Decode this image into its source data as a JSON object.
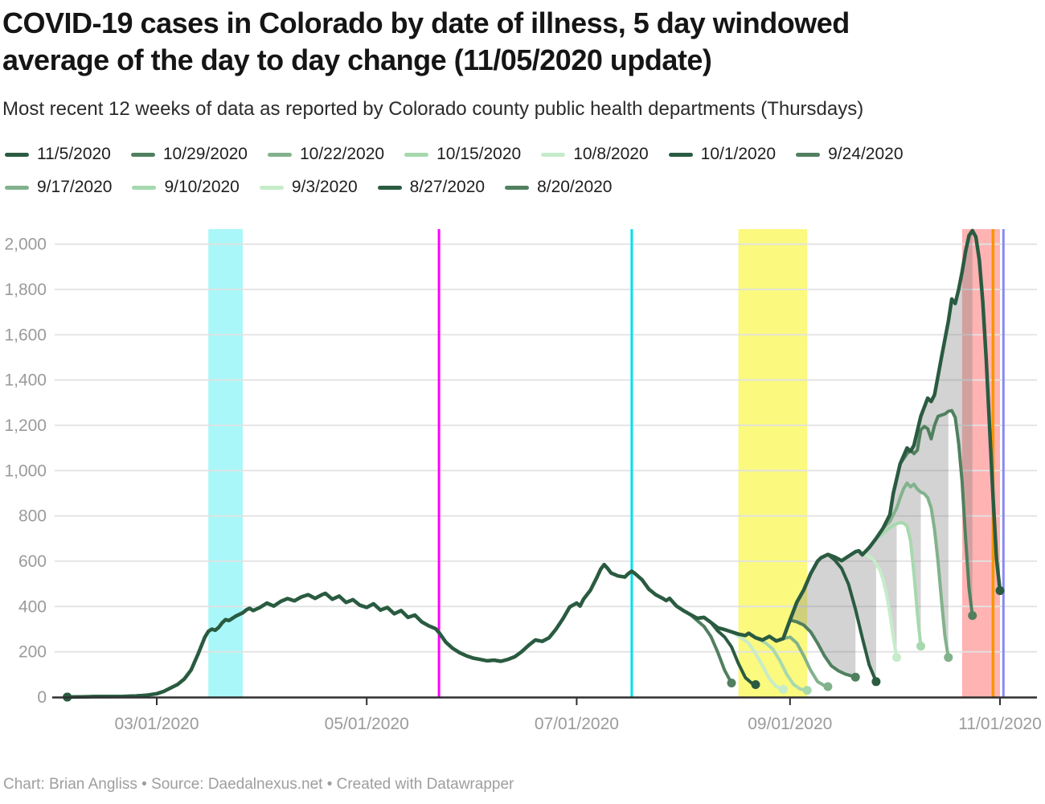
{
  "header": {
    "title_lines": [
      "COVID-19 cases in Colorado by date of illness, 5 day windowed",
      "average of the day to day change (11/05/2020 update)"
    ],
    "subtitle": "Most recent 12 weeks of data as reported by Colorado county public health departments (Thursdays)"
  },
  "legend": {
    "rows": [
      7,
      5
    ]
  },
  "footer": {
    "text": "Chart: Brian Angliss • Source: Daedalnexus.net • Created with Datawrapper"
  },
  "chart_data": {
    "type": "line",
    "title": "COVID-19 cases in Colorado by date of illness, 5 day windowed average of the day to day change (11/05/2020 update)",
    "xlabel": "",
    "ylabel": "",
    "ylim": [
      0,
      2060
    ],
    "grid": true,
    "legend_position": "top",
    "y_ticks": [
      {
        "v": 0,
        "label": "0"
      },
      {
        "v": 200,
        "label": "200"
      },
      {
        "v": 400,
        "label": "400"
      },
      {
        "v": 600,
        "label": "600"
      },
      {
        "v": 800,
        "label": "800"
      },
      {
        "v": 1000,
        "label": "1,000"
      },
      {
        "v": 1200,
        "label": "1,200"
      },
      {
        "v": 1400,
        "label": "1,400"
      },
      {
        "v": 1600,
        "label": "1,600"
      },
      {
        "v": 1800,
        "label": "1,800"
      },
      {
        "v": 2000,
        "label": "2,000"
      }
    ],
    "x_ticks": [
      {
        "date": "03/01",
        "label": "03/01/2020"
      },
      {
        "date": "05/01",
        "label": "05/01/2020"
      },
      {
        "date": "07/01",
        "label": "07/01/2020"
      },
      {
        "date": "09/01",
        "label": "09/01/2020"
      },
      {
        "date": "11/01",
        "label": "11/01/2020"
      }
    ],
    "highlight_bands": [
      {
        "name": "march-stay-home-band",
        "from": "03/16",
        "to": "03/26",
        "color": "#a9f7f9"
      },
      {
        "name": "august-september-band",
        "from": "08/17",
        "to": "09/06",
        "color": "#fbf97e"
      },
      {
        "name": "late-october-band",
        "from": "10/21",
        "to": "11/01",
        "color": "#ffb3b3"
      }
    ],
    "event_lines": [
      {
        "name": "may-line",
        "date": "05/22",
        "color": "#ff00ff",
        "width": 3
      },
      {
        "name": "july-mask-line",
        "date": "07/17",
        "color": "#00e0e8",
        "width": 3
      },
      {
        "name": "halloween-line",
        "date": "10/30",
        "color": "#f79502",
        "width": 3.5
      },
      {
        "name": "november-line",
        "date": "11/02",
        "color": "#8a8af2",
        "width": 3
      }
    ],
    "fan_fill_color": "rgba(120,120,120,0.33)",
    "fans": [
      [
        "9/24/2020",
        "10/1/2020"
      ],
      [
        "10/1/2020",
        "10/8/2020"
      ],
      [
        "10/8/2020",
        "10/15/2020"
      ],
      [
        "10/15/2020",
        "10/22/2020"
      ],
      [
        "10/22/2020",
        "10/29/2020"
      ],
      [
        "10/29/2020",
        "11/5/2020"
      ]
    ],
    "backbone": [
      [
        "02/04",
        0
      ],
      [
        "02/08",
        1
      ],
      [
        "02/12",
        2
      ],
      [
        "02/16",
        2
      ],
      [
        "02/20",
        3
      ],
      [
        "02/24",
        5
      ],
      [
        "02/27",
        8
      ],
      [
        "03/01",
        15
      ],
      [
        "03/03",
        25
      ],
      [
        "03/05",
        40
      ],
      [
        "03/07",
        55
      ],
      [
        "03/09",
        80
      ],
      [
        "03/11",
        120
      ],
      [
        "03/13",
        190
      ],
      [
        "03/15",
        265
      ],
      [
        "03/16",
        290
      ],
      [
        "03/17",
        300
      ],
      [
        "03/18",
        295
      ],
      [
        "03/19",
        308
      ],
      [
        "03/20",
        328
      ],
      [
        "03/21",
        342
      ],
      [
        "03/22",
        338
      ],
      [
        "03/24",
        358
      ],
      [
        "03/26",
        372
      ],
      [
        "03/27",
        385
      ],
      [
        "03/28",
        392
      ],
      [
        "03/29",
        382
      ],
      [
        "03/31",
        396
      ],
      [
        "04/02",
        415
      ],
      [
        "04/04",
        402
      ],
      [
        "04/06",
        422
      ],
      [
        "04/08",
        435
      ],
      [
        "04/10",
        425
      ],
      [
        "04/12",
        442
      ],
      [
        "04/14",
        452
      ],
      [
        "04/16",
        436
      ],
      [
        "04/18",
        452
      ],
      [
        "04/19",
        458
      ],
      [
        "04/21",
        432
      ],
      [
        "04/23",
        446
      ],
      [
        "04/25",
        418
      ],
      [
        "04/27",
        430
      ],
      [
        "04/29",
        406
      ],
      [
        "05/01",
        396
      ],
      [
        "05/03",
        412
      ],
      [
        "05/05",
        384
      ],
      [
        "05/07",
        396
      ],
      [
        "05/09",
        368
      ],
      [
        "05/11",
        382
      ],
      [
        "05/13",
        352
      ],
      [
        "05/15",
        362
      ],
      [
        "05/17",
        332
      ],
      [
        "05/19",
        315
      ],
      [
        "05/21",
        302
      ],
      [
        "05/22",
        285
      ],
      [
        "05/24",
        242
      ],
      [
        "05/26",
        215
      ],
      [
        "05/28",
        196
      ],
      [
        "05/30",
        182
      ],
      [
        "06/01",
        172
      ],
      [
        "06/03",
        166
      ],
      [
        "06/05",
        160
      ],
      [
        "06/07",
        163
      ],
      [
        "06/09",
        158
      ],
      [
        "06/11",
        166
      ],
      [
        "06/13",
        178
      ],
      [
        "06/15",
        200
      ],
      [
        "06/17",
        228
      ],
      [
        "06/19",
        252
      ],
      [
        "06/21",
        246
      ],
      [
        "06/23",
        262
      ],
      [
        "06/25",
        300
      ],
      [
        "06/27",
        345
      ],
      [
        "06/29",
        398
      ],
      [
        "07/01",
        415
      ],
      [
        "07/02",
        402
      ],
      [
        "07/03",
        432
      ],
      [
        "07/05",
        472
      ],
      [
        "07/07",
        532
      ],
      [
        "07/08",
        565
      ],
      [
        "07/09",
        585
      ],
      [
        "07/10",
        568
      ],
      [
        "07/11",
        548
      ],
      [
        "07/13",
        535
      ],
      [
        "07/15",
        530
      ],
      [
        "07/16",
        545
      ],
      [
        "07/17",
        556
      ],
      [
        "07/18",
        545
      ],
      [
        "07/20",
        518
      ],
      [
        "07/22",
        476
      ],
      [
        "07/24",
        452
      ],
      [
        "07/26",
        436
      ],
      [
        "07/27",
        426
      ],
      [
        "07/28",
        436
      ],
      [
        "07/30",
        402
      ],
      [
        "08/01",
        382
      ],
      [
        "08/03",
        365
      ],
      [
        "08/05",
        348
      ],
      [
        "08/07",
        352
      ],
      [
        "08/09",
        330
      ],
      [
        "08/11",
        306
      ],
      [
        "08/13",
        298
      ],
      [
        "08/15",
        288
      ],
      [
        "08/17",
        278
      ],
      [
        "08/19",
        272
      ],
      [
        "08/20",
        282
      ],
      [
        "08/22",
        262
      ],
      [
        "08/24",
        252
      ],
      [
        "08/26",
        268
      ],
      [
        "08/28",
        248
      ],
      [
        "08/30",
        258
      ],
      [
        "09/01",
        340
      ],
      [
        "09/03",
        420
      ],
      [
        "09/05",
        473
      ],
      [
        "09/07",
        545
      ],
      [
        "09/09",
        600
      ],
      [
        "09/10",
        615
      ],
      [
        "09/12",
        630
      ],
      [
        "09/14",
        618
      ],
      [
        "09/16",
        602
      ],
      [
        "09/18",
        622
      ],
      [
        "09/20",
        642
      ],
      [
        "09/21",
        646
      ],
      [
        "09/22",
        628
      ],
      [
        "09/24",
        660
      ],
      [
        "09/26",
        700
      ],
      [
        "09/28",
        745
      ],
      [
        "09/30",
        805
      ],
      [
        "10/01",
        900
      ],
      [
        "10/03",
        1030
      ],
      [
        "10/05",
        1100
      ],
      [
        "10/06",
        1085
      ],
      [
        "10/07",
        1112
      ],
      [
        "10/09",
        1240
      ],
      [
        "10/11",
        1320
      ],
      [
        "10/12",
        1305
      ],
      [
        "10/13",
        1335
      ],
      [
        "10/15",
        1500
      ],
      [
        "10/16",
        1580
      ],
      [
        "10/17",
        1660
      ],
      [
        "10/18",
        1758
      ],
      [
        "10/19",
        1738
      ],
      [
        "10/20",
        1800
      ],
      [
        "10/21",
        1878
      ],
      [
        "10/22",
        1968
      ],
      [
        "10/23",
        2038
      ],
      [
        "10/24",
        2060
      ],
      [
        "10/25",
        2032
      ],
      [
        "10/26",
        1930
      ],
      [
        "10/27",
        1745
      ],
      [
        "10/28",
        1490
      ],
      [
        "10/29",
        1190
      ],
      [
        "10/30",
        880
      ],
      [
        "10/31",
        610
      ],
      [
        "11/01",
        470
      ]
    ],
    "series": [
      {
        "name": "11/5/2020",
        "color": "#2a5b41",
        "width": 4.5,
        "diverge": "12/31",
        "tail": []
      },
      {
        "name": "10/29/2020",
        "color": "#50805f",
        "width": 4,
        "diverge": "10/04",
        "tail": [
          [
            "10/05",
            1075
          ],
          [
            "10/06",
            1090
          ],
          [
            "10/07",
            1075
          ],
          [
            "10/08",
            1090
          ],
          [
            "10/09",
            1180
          ],
          [
            "10/10",
            1195
          ],
          [
            "10/11",
            1185
          ],
          [
            "10/12",
            1140
          ],
          [
            "10/13",
            1200
          ],
          [
            "10/14",
            1240
          ],
          [
            "10/15",
            1245
          ],
          [
            "10/16",
            1250
          ],
          [
            "10/17",
            1262
          ],
          [
            "10/18",
            1265
          ],
          [
            "10/19",
            1235
          ],
          [
            "10/20",
            1120
          ],
          [
            "10/21",
            950
          ],
          [
            "10/22",
            700
          ],
          [
            "10/23",
            480
          ],
          [
            "10/24",
            360
          ]
        ]
      },
      {
        "name": "10/22/2020",
        "color": "#82b28c",
        "width": 4,
        "diverge": "09/28",
        "tail": [
          [
            "09/30",
            775
          ],
          [
            "10/02",
            835
          ],
          [
            "10/03",
            880
          ],
          [
            "10/04",
            920
          ],
          [
            "10/05",
            945
          ],
          [
            "10/06",
            928
          ],
          [
            "10/07",
            940
          ],
          [
            "10/08",
            918
          ],
          [
            "10/09",
            905
          ],
          [
            "10/10",
            898
          ],
          [
            "10/11",
            880
          ],
          [
            "10/12",
            835
          ],
          [
            "10/13",
            740
          ],
          [
            "10/14",
            600
          ],
          [
            "10/15",
            430
          ],
          [
            "10/16",
            270
          ],
          [
            "10/17",
            175
          ]
        ]
      },
      {
        "name": "10/15/2020",
        "color": "#a6d9ae",
        "width": 4,
        "diverge": "09/26",
        "tail": [
          [
            "09/28",
            722
          ],
          [
            "09/30",
            748
          ],
          [
            "10/01",
            758
          ],
          [
            "10/02",
            765
          ],
          [
            "10/03",
            770
          ],
          [
            "10/04",
            768
          ],
          [
            "10/05",
            755
          ],
          [
            "10/06",
            690
          ],
          [
            "10/07",
            545
          ],
          [
            "10/08",
            370
          ],
          [
            "10/09",
            225
          ]
        ]
      },
      {
        "name": "10/8/2020",
        "color": "#c6ecca",
        "width": 4,
        "diverge": "09/21",
        "tail": [
          [
            "09/23",
            630
          ],
          [
            "09/25",
            612
          ],
          [
            "09/27",
            565
          ],
          [
            "09/28",
            520
          ],
          [
            "09/29",
            455
          ],
          [
            "09/30",
            370
          ],
          [
            "10/01",
            262
          ],
          [
            "10/02",
            175
          ]
        ]
      },
      {
        "name": "10/1/2020",
        "color": "#2a5b41",
        "width": 4,
        "diverge": "09/12",
        "tail": [
          [
            "09/14",
            605
          ],
          [
            "09/16",
            568
          ],
          [
            "09/18",
            498
          ],
          [
            "09/20",
            388
          ],
          [
            "09/22",
            262
          ],
          [
            "09/24",
            142
          ],
          [
            "09/26",
            68
          ]
        ]
      },
      {
        "name": "9/24/2020",
        "color": "#50805f",
        "width": 4,
        "diverge": "09/01",
        "tail": [
          [
            "09/03",
            332
          ],
          [
            "09/05",
            318
          ],
          [
            "09/07",
            288
          ],
          [
            "09/09",
            238
          ],
          [
            "09/11",
            182
          ],
          [
            "09/13",
            138
          ],
          [
            "09/15",
            116
          ],
          [
            "09/17",
            102
          ],
          [
            "09/20",
            88
          ]
        ]
      },
      {
        "name": "9/17/2020",
        "color": "#82b28c",
        "width": 4,
        "diverge": "08/30",
        "tail": [
          [
            "09/01",
            265
          ],
          [
            "09/03",
            238
          ],
          [
            "09/05",
            182
          ],
          [
            "09/07",
            118
          ],
          [
            "09/09",
            68
          ],
          [
            "09/11",
            50
          ],
          [
            "09/12",
            46
          ]
        ]
      },
      {
        "name": "9/10/2020",
        "color": "#a6d9ae",
        "width": 4,
        "diverge": "08/23",
        "tail": [
          [
            "08/25",
            238
          ],
          [
            "08/27",
            212
          ],
          [
            "08/29",
            162
          ],
          [
            "08/31",
            102
          ],
          [
            "09/02",
            56
          ],
          [
            "09/04",
            35
          ],
          [
            "09/06",
            30
          ]
        ]
      },
      {
        "name": "9/3/2020",
        "color": "#c6ecca",
        "width": 4,
        "diverge": "08/16",
        "tail": [
          [
            "08/18",
            260
          ],
          [
            "08/20",
            238
          ],
          [
            "08/22",
            192
          ],
          [
            "08/24",
            138
          ],
          [
            "08/26",
            82
          ],
          [
            "08/28",
            46
          ],
          [
            "08/30",
            34
          ]
        ]
      },
      {
        "name": "8/27/2020",
        "color": "#2a5b41",
        "width": 4,
        "diverge": "08/09",
        "tail": [
          [
            "08/11",
            292
          ],
          [
            "08/13",
            265
          ],
          [
            "08/15",
            222
          ],
          [
            "08/17",
            148
          ],
          [
            "08/19",
            86
          ],
          [
            "08/21",
            60
          ],
          [
            "08/22",
            55
          ]
        ]
      },
      {
        "name": "8/20/2020",
        "color": "#50805f",
        "width": 4,
        "diverge": "08/03",
        "tail": [
          [
            "08/05",
            338
          ],
          [
            "08/07",
            312
          ],
          [
            "08/09",
            268
          ],
          [
            "08/11",
            198
          ],
          [
            "08/13",
            118
          ],
          [
            "08/15",
            62
          ]
        ]
      }
    ],
    "axis_color": "#2f2f2f",
    "grid_color": "#e2e2e2",
    "tick_label_color": "#9b9b9b"
  }
}
